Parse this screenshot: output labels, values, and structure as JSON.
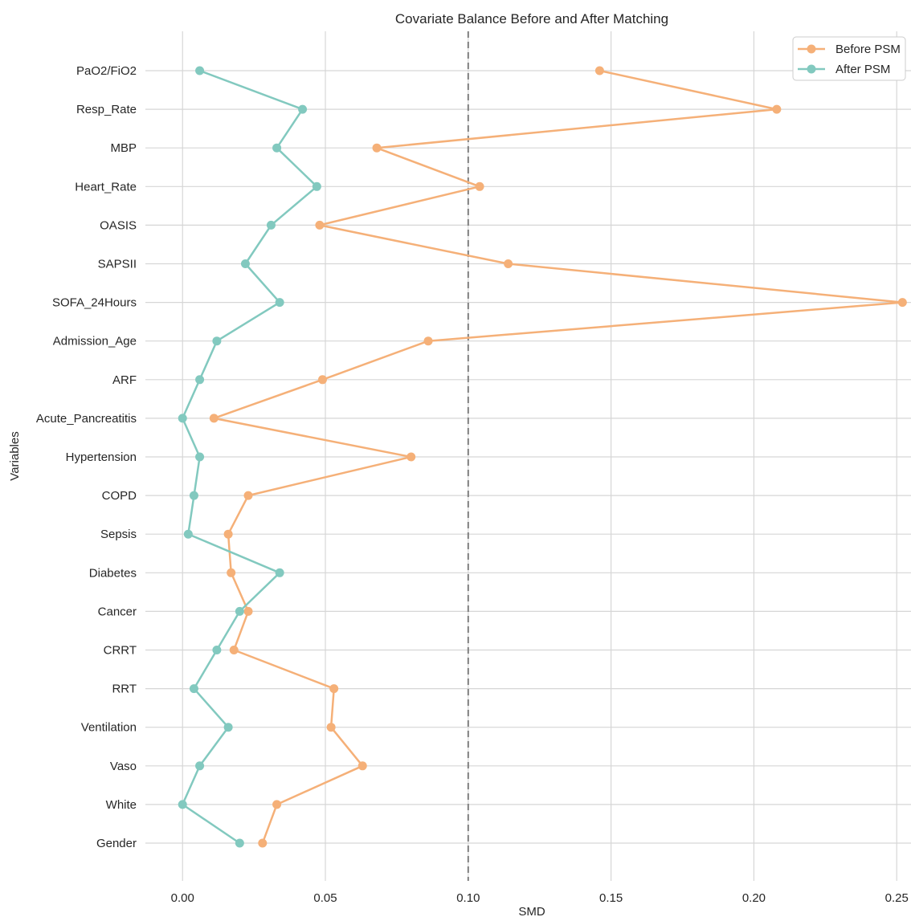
{
  "chart_data": {
    "type": "line",
    "title": "Covariate Balance Before and After Matching",
    "xlabel": "SMD",
    "ylabel": "Variables",
    "xlim": [
      -0.013,
      0.255
    ],
    "xticks": [
      0.0,
      0.05,
      0.1,
      0.15,
      0.2,
      0.25
    ],
    "xtick_labels": [
      "0.00",
      "0.05",
      "0.10",
      "0.15",
      "0.20",
      "0.25"
    ],
    "grid": true,
    "legend_position": "top-right",
    "threshold_line": {
      "x": 0.1,
      "style": "dashed",
      "color": "#7f7f7f"
    },
    "categories": [
      "PaO2/FiO2",
      "Resp_Rate",
      "MBP",
      "Heart_Rate",
      "OASIS",
      "SAPSII",
      "SOFA_24Hours",
      "Admission_Age",
      "ARF",
      "Acute_Pancreatitis",
      "Hypertension",
      "COPD",
      "Sepsis",
      "Diabetes",
      "Cancer",
      "CRRT",
      "RRT",
      "Ventilation",
      "Vaso",
      "White",
      "Gender"
    ],
    "series": [
      {
        "name": "Before PSM",
        "color": "#f5b078",
        "values": [
          0.146,
          0.208,
          0.068,
          0.104,
          0.048,
          0.114,
          0.252,
          0.086,
          0.049,
          0.011,
          0.08,
          0.023,
          0.016,
          0.017,
          0.023,
          0.018,
          0.053,
          0.052,
          0.063,
          0.033,
          0.028
        ]
      },
      {
        "name": "After PSM",
        "color": "#82c9bf",
        "values": [
          0.006,
          0.042,
          0.033,
          0.047,
          0.031,
          0.022,
          0.034,
          0.012,
          0.006,
          0.0,
          0.006,
          0.004,
          0.002,
          0.034,
          0.02,
          0.012,
          0.004,
          0.016,
          0.006,
          0.0,
          0.02
        ]
      }
    ]
  }
}
